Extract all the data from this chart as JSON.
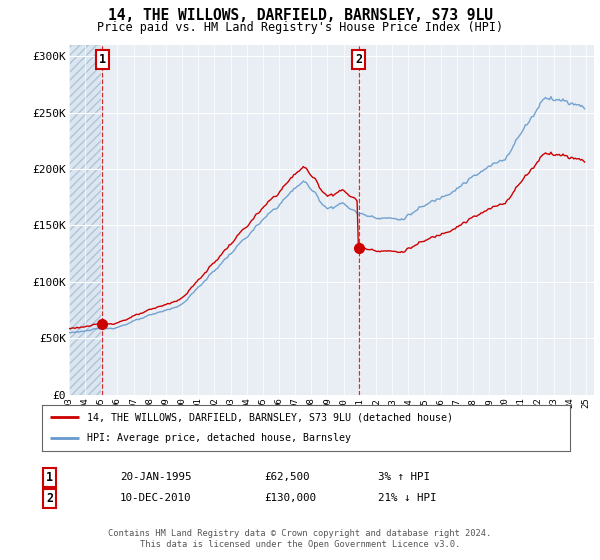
{
  "title": "14, THE WILLOWS, DARFIELD, BARNSLEY, S73 9LU",
  "subtitle": "Price paid vs. HM Land Registry's House Price Index (HPI)",
  "ylabel_ticks": [
    "£0",
    "£50K",
    "£100K",
    "£150K",
    "£200K",
    "£250K",
    "£300K"
  ],
  "ytick_values": [
    0,
    50000,
    100000,
    150000,
    200000,
    250000,
    300000
  ],
  "ylim": [
    0,
    310000
  ],
  "xlim_start": 1993.0,
  "xlim_end": 2025.5,
  "legend_line1": "14, THE WILLOWS, DARFIELD, BARNSLEY, S73 9LU (detached house)",
  "legend_line2": "HPI: Average price, detached house, Barnsley",
  "annotation1_date": "20-JAN-1995",
  "annotation1_price": "£62,500",
  "annotation1_hpi": "3% ↑ HPI",
  "annotation2_date": "10-DEC-2010",
  "annotation2_price": "£130,000",
  "annotation2_hpi": "21% ↓ HPI",
  "footer": "Contains HM Land Registry data © Crown copyright and database right 2024.\nThis data is licensed under the Open Government Licence v3.0.",
  "sold_color": "#cc0000",
  "hpi_color": "#6699cc",
  "bg_color": "#e8eef4",
  "hatch_bg_color": "#dce6f0",
  "grid_color": "#ffffff",
  "point1_x": 1995.05,
  "point1_y": 62500,
  "point2_x": 2010.94,
  "point2_y": 130000,
  "vline1_x": 1995.05,
  "vline2_x": 2010.94,
  "box_edge_color": "#cc0000",
  "box_face_color": "#ffffff"
}
